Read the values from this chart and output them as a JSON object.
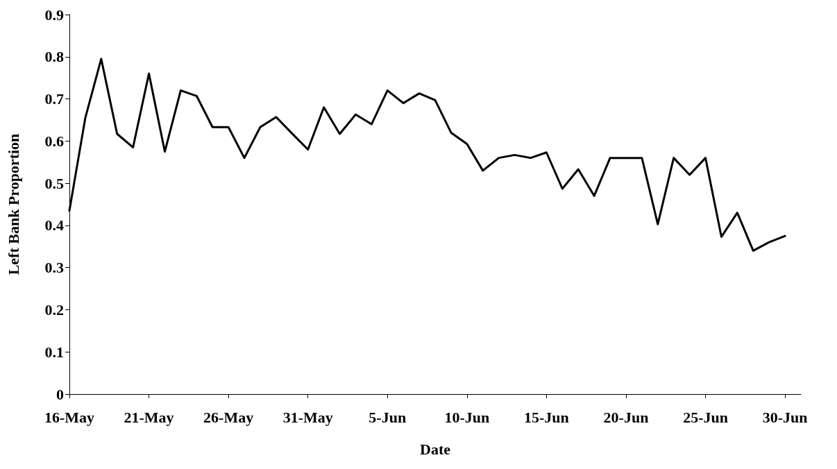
{
  "chart_data": {
    "type": "line",
    "xlabel": "Date",
    "ylabel": "Left Bank Proportion",
    "x": [
      "--05-16",
      "--05-17",
      "--05-18",
      "--05-19",
      "--05-20",
      "--05-21",
      "--05-22",
      "--05-23",
      "--05-24",
      "--05-25",
      "--05-26",
      "--05-27",
      "--05-28",
      "--05-29",
      "--05-30",
      "--05-31",
      "--06-01",
      "--06-02",
      "--06-03",
      "--06-04",
      "--06-05",
      "--06-06",
      "--06-07",
      "--06-08",
      "--06-09",
      "--06-10",
      "--06-11",
      "--06-12",
      "--06-13",
      "--06-14",
      "--06-15",
      "--06-16",
      "--06-17",
      "--06-18",
      "--06-19",
      "--06-20",
      "--06-21",
      "--06-22",
      "--06-23",
      "--06-24",
      "--06-25",
      "--06-26",
      "--06-27",
      "--06-28",
      "--06-29",
      "--06-30"
    ],
    "series": [
      {
        "color": "#000000",
        "values": [
          0.435,
          0.655,
          0.795,
          0.617,
          0.585,
          0.76,
          0.575,
          0.72,
          0.707,
          0.633,
          0.633,
          0.56,
          0.633,
          0.657,
          0.618,
          0.58,
          0.68,
          0.617,
          0.663,
          0.64,
          0.72,
          0.69,
          0.713,
          0.697,
          0.62,
          0.593,
          0.53,
          0.56,
          0.567,
          0.56,
          0.573,
          0.487,
          0.533,
          0.47,
          0.56,
          0.56,
          0.56,
          0.403,
          0.56,
          0.52,
          0.56,
          0.373,
          0.43,
          0.34,
          0.36,
          0.375
        ]
      }
    ],
    "xlim": [
      "--05-16",
      "--07-01"
    ],
    "xticks": [
      {
        "value": "--05-16",
        "label": "16-May"
      },
      {
        "value": "--05-21",
        "label": "21-May"
      },
      {
        "value": "--05-26",
        "label": "26-May"
      },
      {
        "value": "--05-31",
        "label": "31-May"
      },
      {
        "value": "--06-05",
        "label": "5-Jun"
      },
      {
        "value": "--06-10",
        "label": "10-Jun"
      },
      {
        "value": "--06-15",
        "label": "15-Jun"
      },
      {
        "value": "--06-20",
        "label": "20-Jun"
      },
      {
        "value": "--06-25",
        "label": "25-Jun"
      },
      {
        "value": "--06-30",
        "label": "30-Jun"
      }
    ],
    "ylim": [
      0,
      0.9
    ],
    "yticks": [
      0,
      0.1,
      0.2,
      0.3,
      0.4,
      0.5,
      0.6,
      0.7,
      0.8,
      0.9
    ],
    "grid": false,
    "marker": "none",
    "line_style": "solid"
  }
}
